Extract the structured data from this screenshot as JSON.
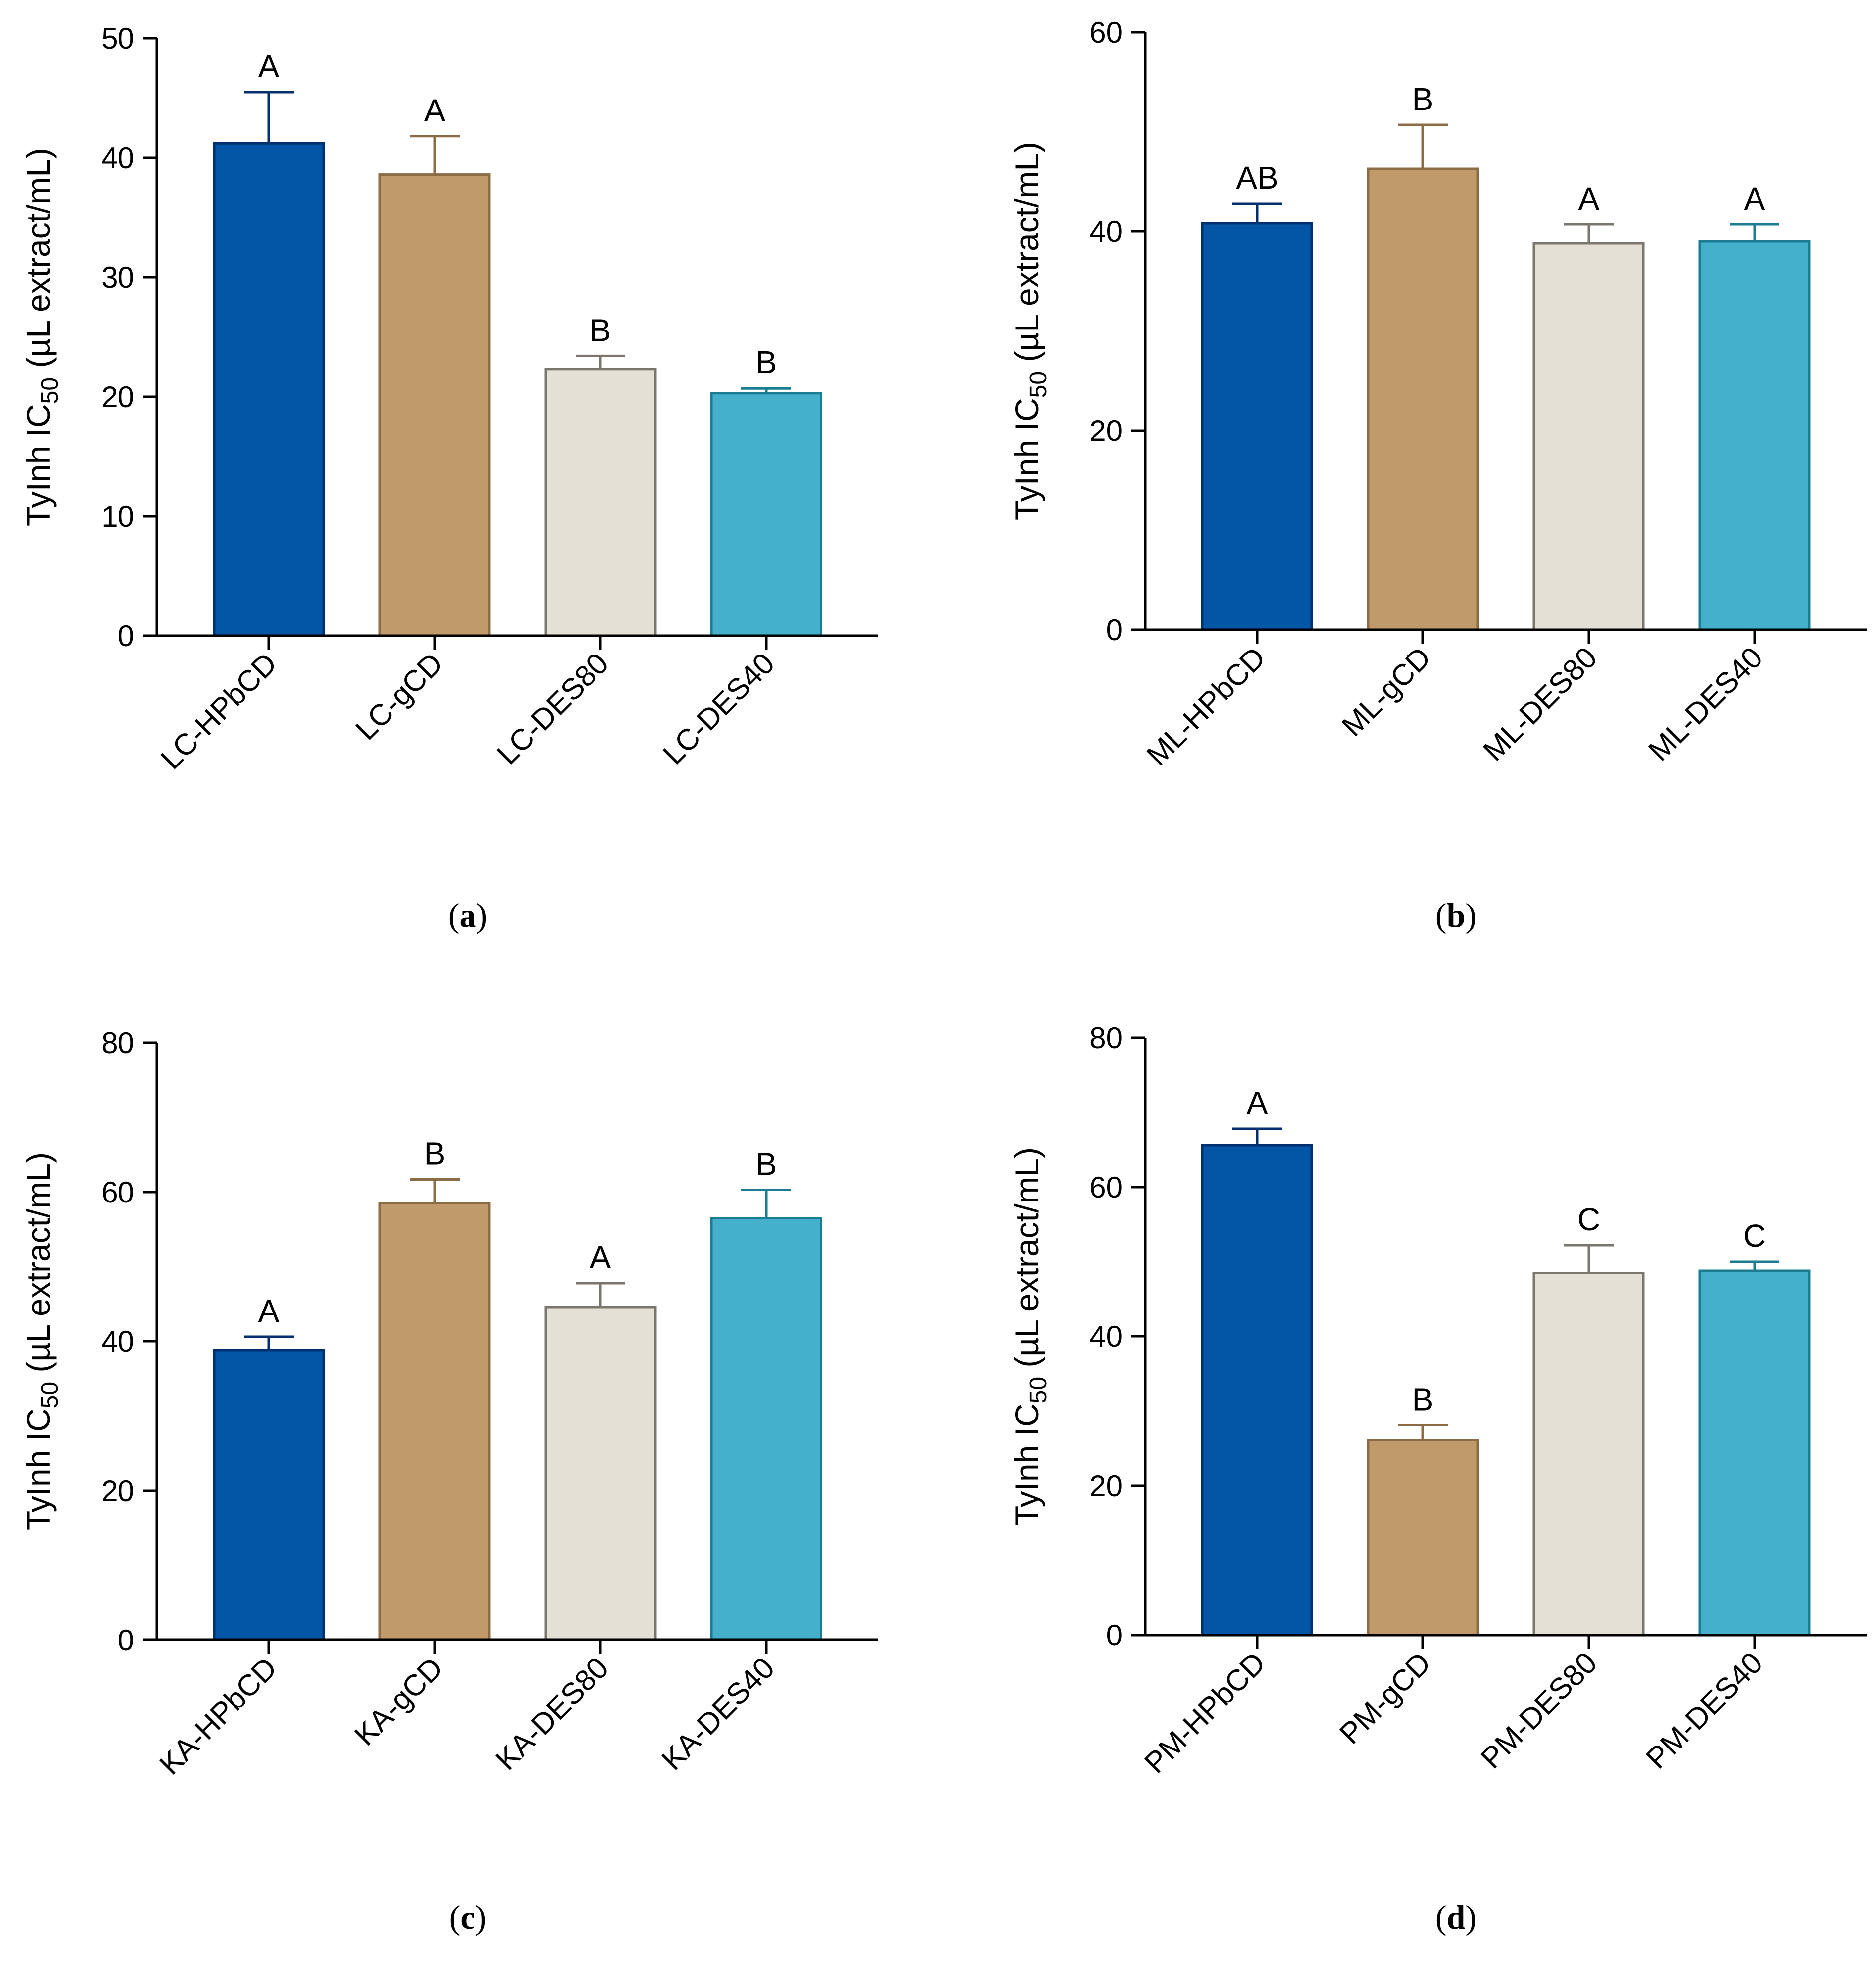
{
  "figure": {
    "y_axis_title_main": "TyInh IC",
    "y_axis_title_sub": "50",
    "y_axis_title_unit": " (µL extract/mL)",
    "panel_open": "(",
    "panel_close": ")"
  },
  "colors": {
    "bars": [
      "#0256a5",
      "#c19a6b",
      "#e5e0d5",
      "#45b0cc"
    ],
    "outlines": [
      "#00306e",
      "#8c6c45",
      "#7a756d",
      "#1a7d92"
    ]
  },
  "chart_data": [
    {
      "type": "bar",
      "panel": "a",
      "title": "",
      "xlabel": "",
      "ylabel": "TyInh IC50 (µL extract/mL)",
      "ylim": [
        0,
        50
      ],
      "yticks": [
        0,
        10,
        20,
        30,
        40,
        50
      ],
      "categories": [
        "LC-HPbCD",
        "LC-gCD",
        "LC-DES80",
        "LC-DES40"
      ],
      "values": [
        41.2,
        38.6,
        22.3,
        20.3
      ],
      "errors": [
        4.3,
        3.2,
        1.1,
        0.4
      ],
      "significance": [
        "A",
        "A",
        "B",
        "B"
      ]
    },
    {
      "type": "bar",
      "panel": "b",
      "title": "",
      "xlabel": "",
      "ylabel": "TyInh IC50 (µL extract/mL)",
      "ylim": [
        0,
        60
      ],
      "yticks": [
        0,
        20,
        40,
        60
      ],
      "categories": [
        "ML-HPbCD",
        "ML-gCD",
        "ML-DES80",
        "ML-DES40"
      ],
      "values": [
        40.8,
        46.3,
        38.8,
        39.0
      ],
      "errors": [
        2.0,
        4.4,
        1.9,
        1.7
      ],
      "significance": [
        "AB",
        "B",
        "A",
        "A"
      ]
    },
    {
      "type": "bar",
      "panel": "c",
      "title": "",
      "xlabel": "",
      "ylabel": "TyInh IC50 (µL extract/mL)",
      "ylim": [
        0,
        80
      ],
      "yticks": [
        0,
        20,
        40,
        60,
        80
      ],
      "categories": [
        "KA-HPbCD",
        "KA-gCD",
        "KA-DES80",
        "KA-DES40"
      ],
      "values": [
        38.8,
        58.5,
        44.6,
        56.5
      ],
      "errors": [
        1.8,
        3.2,
        3.2,
        3.8
      ],
      "significance": [
        "A",
        "B",
        "A",
        "B"
      ]
    },
    {
      "type": "bar",
      "panel": "d",
      "title": "",
      "xlabel": "",
      "ylabel": "TyInh IC50 (µL extract/mL)",
      "ylim": [
        0,
        80
      ],
      "yticks": [
        0,
        20,
        40,
        60,
        80
      ],
      "categories": [
        "PM-HPbCD",
        "PM-gCD",
        "PM-DES80",
        "PM-DES40"
      ],
      "values": [
        65.6,
        26.1,
        48.5,
        48.8
      ],
      "errors": [
        2.2,
        2.0,
        3.7,
        1.2
      ],
      "significance": [
        "A",
        "B",
        "C",
        "C"
      ]
    }
  ]
}
